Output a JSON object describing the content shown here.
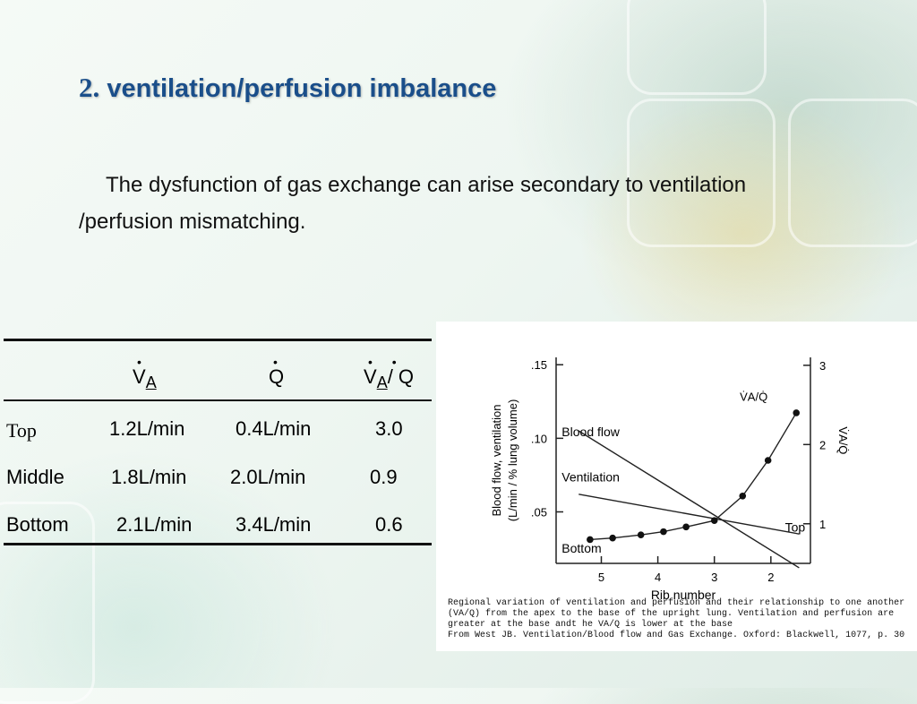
{
  "slide": {
    "title_number": "2.",
    "title_text": "ventilation/perfusion imbalance",
    "intro_line1": "The dysfunction of gas exchange can arise secondary to ventilation",
    "intro_line2": "/perfusion mismatching."
  },
  "table": {
    "headers": {
      "va": "V",
      "va_sub": "A",
      "q": "Q",
      "ratio_v": "V",
      "ratio_sub": "A",
      "ratio_sep": "/ Q"
    },
    "rows": [
      {
        "region": "Top",
        "va": "1.2L/min",
        "q": "0.4L/min",
        "ratio": "3.0"
      },
      {
        "region": "Middle",
        "va": "1.8L/min",
        "q": "2.0L/min",
        "ratio": "0.9"
      },
      {
        "region": "Bottom",
        "va": "2.1L/min",
        "q": "3.4L/min",
        "ratio": "0.6"
      }
    ]
  },
  "chart_data": {
    "type": "line",
    "x_label": "Rib number",
    "x_ticks": [
      5,
      4,
      3,
      2
    ],
    "x_range": [
      5.8,
      1.3
    ],
    "y_left_label_line1": "Blood flow, ventilation",
    "y_left_label_line2": "(L/min / % lung volume)",
    "y_left_ticks": [
      ".05",
      ".10",
      ".15"
    ],
    "y_left_range": [
      0.015,
      0.155
    ],
    "y_right_ticks": [
      1,
      2,
      3
    ],
    "y_right_range": [
      0.5,
      3.1
    ],
    "y_right_label": "V̇A/Q̇",
    "curve_label": "V̇A/Q̇",
    "series": [
      {
        "name": "Blood flow",
        "axis": "left",
        "x": [
          5.4,
          1.5
        ],
        "y": [
          0.105,
          0.012
        ]
      },
      {
        "name": "Ventilation",
        "axis": "left",
        "x": [
          5.4,
          1.5
        ],
        "y": [
          0.062,
          0.035
        ]
      },
      {
        "name": "",
        "axis": "right",
        "markers": true,
        "x": [
          5.2,
          4.8,
          4.3,
          3.9,
          3.5,
          3.0,
          2.5,
          2.05,
          1.55
        ],
        "y": [
          0.8,
          0.82,
          0.86,
          0.9,
          0.96,
          1.04,
          1.35,
          1.8,
          2.4
        ]
      }
    ],
    "annotations": {
      "top": "Top",
      "bottom": "Bottom"
    },
    "grid": false,
    "caption": [
      "Regional variation of ventilation and perfusion and their relationship to one another",
      "(VA/Q) from the apex to the base of the upright lung. Ventilation and perfusion are",
      "greater at the base andt he VA/Q is lower at the base",
      "From West JB. Ventilation/Blood flow and Gas Exchange. Oxford: Blackwell, 1077, p. 30"
    ]
  }
}
